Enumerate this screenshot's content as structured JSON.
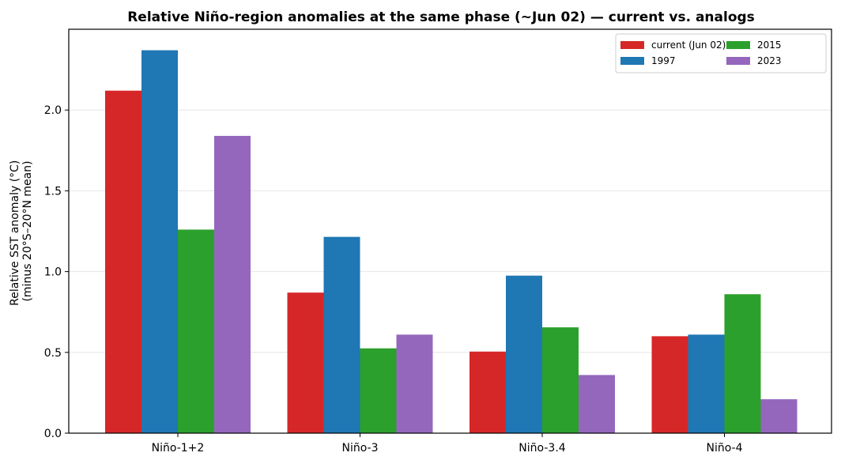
{
  "chart_data": {
    "type": "bar",
    "title": "Relative Niño-region anomalies at the same phase (~Jun 02) — current vs. analogs",
    "xlabel": "",
    "ylabel_lines": [
      "Relative SST anomaly (°C)",
      "(minus 20°S–20°N mean)"
    ],
    "categories": [
      "Niño-1+2",
      "Niño-3",
      "Niño-3.4",
      "Niño-4"
    ],
    "ylim": [
      0,
      2.5
    ],
    "yticks": [
      0.0,
      0.5,
      1.0,
      1.5,
      2.0
    ],
    "ytick_labels": [
      "0.0",
      "0.5",
      "1.0",
      "1.5",
      "2.0"
    ],
    "grid": "horizontal",
    "legend_placement": "top-right",
    "series": [
      {
        "name": "current (Jun 02)",
        "color": "#d62728",
        "values": [
          2.12,
          0.87,
          0.505,
          0.6
        ]
      },
      {
        "name": "1997",
        "color": "#1f77b4",
        "values": [
          2.37,
          1.215,
          0.975,
          0.61
        ]
      },
      {
        "name": "2015",
        "color": "#2ca02c",
        "values": [
          1.26,
          0.525,
          0.655,
          0.86
        ]
      },
      {
        "name": "2023",
        "color": "#9467bd",
        "values": [
          1.84,
          0.61,
          0.36,
          0.21
        ]
      }
    ]
  }
}
